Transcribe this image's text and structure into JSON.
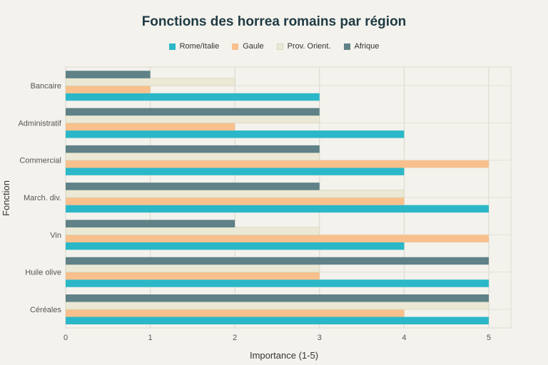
{
  "chart_data": {
    "type": "bar",
    "orientation": "horizontal",
    "title": "Fonctions des horrea romains par région",
    "xlabel": "Importance (1-5)",
    "ylabel": "Fonction",
    "xlim": [
      0,
      5
    ],
    "xticks": [
      "0",
      "1",
      "2",
      "3",
      "4",
      "5"
    ],
    "categories": [
      "Céréales",
      "Huile olive",
      "Vin",
      "March. div.",
      "Commercial",
      "Administratif",
      "Bancaire"
    ],
    "series": [
      {
        "name": "Rome/Italie",
        "color": "#2bb7c8",
        "values": [
          5,
          5,
          4,
          5,
          4,
          4,
          3
        ]
      },
      {
        "name": "Gaule",
        "color": "#f8c08c",
        "values": [
          4,
          3,
          5,
          4,
          5,
          2,
          1
        ]
      },
      {
        "name": "Prov. Orient.",
        "color": "#ebe9d6",
        "values": [
          5,
          3,
          3,
          4,
          3,
          3,
          2
        ]
      },
      {
        "name": "Afrique",
        "color": "#5f8187",
        "values": [
          5,
          5,
          2,
          3,
          3,
          3,
          1
        ]
      }
    ],
    "grid": true,
    "legend_position": "top-center"
  }
}
